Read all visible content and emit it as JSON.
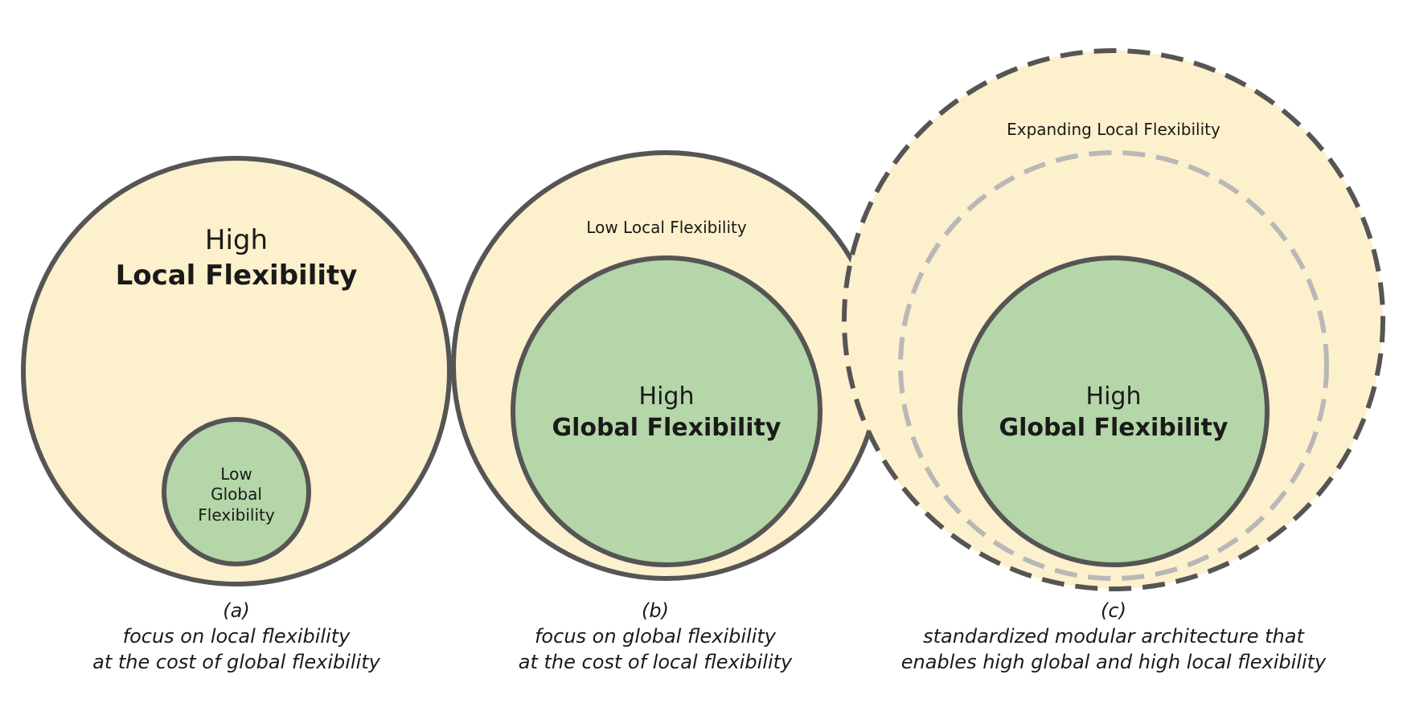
{
  "colors": {
    "outer_fill": "#fdf0cc",
    "inner_fill": "#b5d6a8",
    "stroke": "#555555",
    "dashed_inner_stroke": "#b8b8b8"
  },
  "panel_a": {
    "outer_label_top": "High",
    "outer_label_bottom": "Local Flexibility",
    "inner_label": [
      "Low",
      "Global",
      "Flexibility"
    ],
    "caption": [
      "(a)",
      "focus on local flexibility",
      "at the cost of global flexibility"
    ]
  },
  "panel_b": {
    "outer_label": "Low Local Flexibility",
    "inner_label_top": "High",
    "inner_label_bottom": "Global Flexibility",
    "caption": [
      "(b)",
      "focus on global flexibility",
      "at the cost of local flexibility"
    ]
  },
  "panel_c": {
    "outer_label": "Expanding Local Flexibility",
    "inner_label_top": "High",
    "inner_label_bottom": "Global Flexibility",
    "caption": [
      "(c)",
      "standardized modular architecture that",
      "enables high global and high local flexibility"
    ]
  }
}
